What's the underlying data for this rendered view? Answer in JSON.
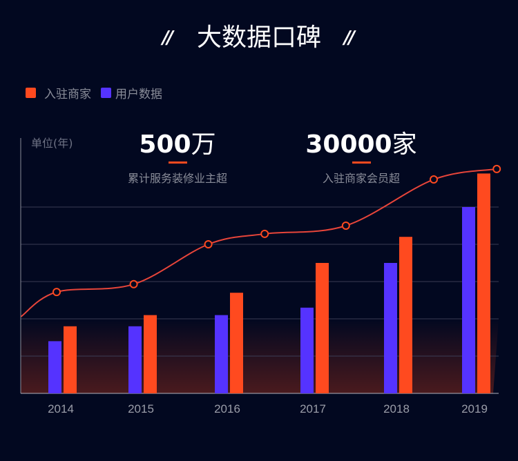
{
  "header": {
    "title": "大数据口碑",
    "quote_left": "//",
    "quote_right": "//"
  },
  "stats": [
    {
      "number": "500",
      "unit": "万",
      "caption": "累计服务装修业主超"
    },
    {
      "number": "30000",
      "unit": "家",
      "caption": "入驻商家会员超"
    }
  ],
  "colors": {
    "background": "#020820",
    "merchants": "#ff4a1f",
    "users": "#5533ff",
    "line": "#e8453a",
    "grid": "#3a3d55",
    "area_bottom": "#4a1a1e"
  },
  "chart_data": {
    "type": "bar",
    "ylabel": "单位(年)",
    "categories": [
      "2014",
      "2015",
      "2016",
      "2017",
      "2018",
      "2019"
    ],
    "ylim": [
      0,
      7
    ],
    "grid": true,
    "legend_position": "top-left",
    "series": [
      {
        "name": "用户数据",
        "color": "#5533ff",
        "values": [
          1.4,
          1.8,
          2.1,
          2.3,
          3.5,
          5.0
        ]
      },
      {
        "name": "入驻商家",
        "color": "#ff4a1f",
        "values": [
          1.8,
          2.1,
          2.7,
          3.5,
          4.2,
          5.9
        ]
      }
    ],
    "legend": [
      "入驻商家",
      "用户数据"
    ],
    "line": {
      "type": "smooth-line",
      "color": "#e8453a",
      "x": [
        2013.52,
        2013.95,
        2014.88,
        2015.78,
        2016.46,
        2017.44,
        2018.5,
        2019.26
      ],
      "values": [
        2.06,
        2.72,
        2.93,
        4.0,
        4.28,
        4.5,
        5.74,
        6.02
      ]
    }
  }
}
